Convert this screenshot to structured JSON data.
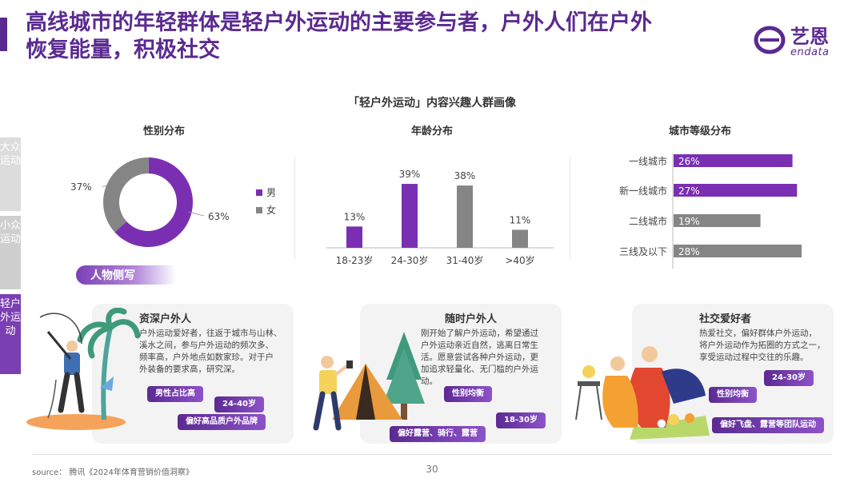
{
  "header": {
    "title_line1": "高线城市的年轻群体是轻户外运动的主要参与者，户外人们在户外",
    "title_line2": "恢复能量，积极社交",
    "logo_text": "艺恩",
    "logo_sub": "endata"
  },
  "section_title": "「轻户外运动」内容兴趣人群画像",
  "side_tabs": [
    {
      "label": "大众运动"
    },
    {
      "label": "小众运动"
    },
    {
      "label": "轻户外运动"
    }
  ],
  "colors": {
    "purple": "#7a2fb3",
    "gray": "#858585",
    "title_purple": "#5b2a91"
  },
  "chart_data": [
    {
      "type": "pie",
      "title": "性别分布",
      "categories": [
        "男",
        "女"
      ],
      "values": [
        63,
        37
      ],
      "labels": [
        "63%",
        "37%"
      ],
      "legend": [
        "男",
        "女"
      ],
      "legend_placement": "right"
    },
    {
      "type": "bar",
      "title": "年龄分布",
      "categories": [
        "18-23岁",
        "24-30岁",
        "31-40岁",
        ">40岁"
      ],
      "values": [
        13,
        39,
        38,
        11
      ],
      "labels": [
        "13%",
        "39%",
        "38%",
        "11%"
      ],
      "colors": [
        "purple",
        "purple",
        "gray",
        "gray"
      ]
    },
    {
      "type": "bar",
      "orientation": "horizontal",
      "title": "城市等级分布",
      "categories": [
        "一线城市",
        "新一线城市",
        "二线城市",
        "三线及以下"
      ],
      "values": [
        26,
        27,
        19,
        28
      ],
      "labels": [
        "26%",
        "27%",
        "19%",
        "28%"
      ],
      "colors": [
        "purple",
        "purple",
        "gray",
        "gray"
      ]
    }
  ],
  "persona_banner": "人物侧写",
  "cards": [
    {
      "title": "资深户外人",
      "desc_lines": [
        "户外运动爱好者，往返于城市与山林、",
        "溪水之间，参与户外运动的频次多、",
        "频率高，户外地点如数家珍。对于户",
        "外装备的要求高，研究深。"
      ],
      "tags": [
        "男性占比高",
        "24-40岁",
        "偏好高品质户外品牌"
      ]
    },
    {
      "title": "随时户外人",
      "desc_lines": [
        "刚开始了解户外运动，希望通过",
        "户外运动亲近自然，逃离日常生",
        "活。愿意尝试各种户外运动，更",
        "加追求轻量化、无门槛的户外运",
        "动。"
      ],
      "tags": [
        "性别均衡",
        "18-30岁",
        "偏好露营、骑行、露营"
      ]
    },
    {
      "title": "社交爱好者",
      "desc_lines": [
        "热爱社交，偏好群体户外运动，",
        "将户外运动作为拓圈的方式之一，",
        "享受运动过程中交往的乐趣。"
      ],
      "tags": [
        "24-30岁",
        "性别均衡",
        "偏好飞盘、露营等团队运动"
      ]
    }
  ],
  "footer": {
    "source": "source：  腾讯《2024年体育营销价值洞察》",
    "page": "30"
  }
}
